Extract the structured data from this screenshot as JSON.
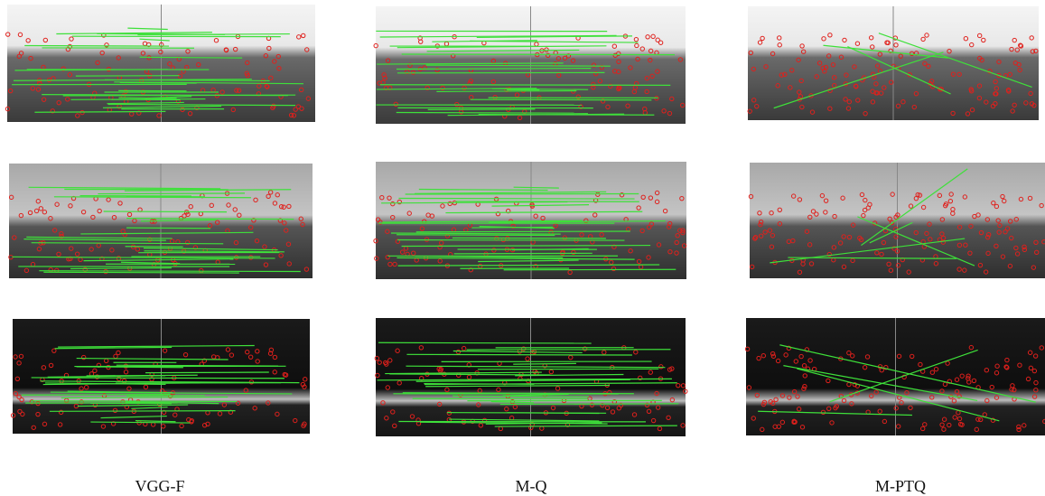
{
  "captions": [
    "VGG-F",
    "M-Q",
    "M-PTQ"
  ]
}
